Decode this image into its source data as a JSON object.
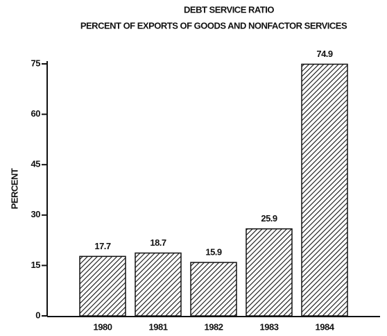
{
  "chart_data": {
    "type": "bar",
    "title": "DEBT SERVICE RATIO",
    "subtitle": "PERCENT OF EXPORTS OF GOODS AND NONFACTOR SERVICES",
    "y_label": "PERCENT",
    "categories": [
      "1980",
      "1981",
      "1982",
      "1983",
      "1984"
    ],
    "values": [
      17.7,
      18.7,
      15.9,
      25.9,
      74.9
    ],
    "color": "#111111",
    "ylim": [
      0,
      75
    ],
    "yticks": [
      0,
      15,
      30,
      45,
      60,
      75
    ]
  }
}
